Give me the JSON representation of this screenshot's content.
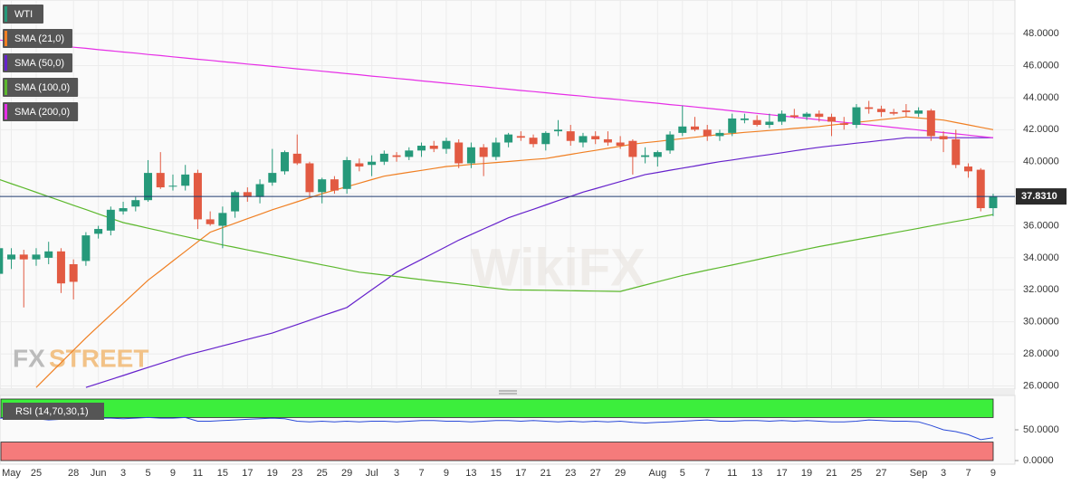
{
  "chart_data": [
    {
      "type": "candlestick",
      "name": "WTI",
      "up_color": "#26997a",
      "down_color": "#e25a42",
      "categories": [
        null,
        "May",
        null,
        "25",
        null,
        null,
        "28",
        null,
        "Jun",
        null,
        "3",
        null,
        "5",
        null,
        "9",
        null,
        "11",
        null,
        "15",
        null,
        "17",
        null,
        "19",
        null,
        "23",
        null,
        "25",
        null,
        "29",
        null,
        "Jul",
        null,
        "3",
        null,
        "7",
        null,
        "9",
        null,
        "13",
        null,
        "15",
        null,
        "17",
        null,
        "21",
        null,
        "23",
        null,
        "27",
        null,
        "29",
        null,
        null,
        "Aug",
        null,
        "5",
        null,
        "7",
        null,
        "11",
        null,
        "13",
        null,
        "17",
        null,
        "19",
        null,
        "21",
        null,
        "25",
        null,
        "27",
        null,
        null,
        "Sep",
        null,
        "3",
        null,
        "7",
        null,
        "9"
      ],
      "open": [
        33.0,
        33.9,
        34.2,
        33.9,
        34.0,
        34.4,
        33.6,
        33.8,
        35.5,
        35.7,
        36.9,
        37.2,
        37.6,
        39.3,
        38.5,
        38.5,
        39.3,
        36.4,
        36.0,
        36.9,
        38.1,
        37.8,
        38.7,
        39.4,
        40.5,
        39.9,
        38.1,
        38.9,
        38.3,
        39.9,
        39.8,
        40.0,
        40.4,
        40.3,
        40.7,
        41.0,
        40.8,
        41.2,
        39.9,
        40.9,
        40.3,
        41.2,
        41.6,
        41.5,
        41.1,
        41.9,
        41.9,
        41.2,
        41.6,
        41.4,
        41.2,
        41.3,
        40.3,
        40.3,
        40.7,
        41.8,
        42.2,
        42.0,
        41.6,
        41.8,
        42.6,
        42.6,
        42.3,
        42.5,
        42.9,
        42.8,
        43.0,
        42.8,
        42.4,
        42.3,
        43.4,
        43.3,
        43.1,
        43.2,
        43.0,
        43.2,
        41.6,
        41.4,
        39.7,
        39.5,
        37.1
      ],
      "high": [
        35.3,
        34.6,
        34.5,
        34.6,
        35.0,
        34.6,
        33.9,
        35.6,
        36.0,
        37.2,
        37.5,
        37.8,
        40.1,
        40.6,
        39.2,
        39.8,
        39.5,
        36.9,
        37.2,
        38.2,
        38.4,
        38.9,
        40.8,
        40.7,
        41.7,
        40.0,
        39.0,
        39.1,
        40.3,
        40.2,
        40.4,
        40.7,
        40.6,
        40.9,
        41.2,
        41.3,
        41.5,
        41.4,
        41.2,
        41.1,
        41.5,
        41.8,
        41.9,
        41.7,
        41.9,
        42.6,
        42.3,
        41.8,
        41.9,
        41.9,
        41.6,
        41.4,
        40.9,
        40.7,
        41.9,
        43.5,
        42.8,
        42.3,
        42.0,
        43.0,
        43.0,
        42.9,
        43.0,
        43.2,
        43.3,
        43.1,
        43.2,
        43.0,
        42.8,
        43.6,
        43.8,
        43.5,
        43.3,
        43.6,
        43.4,
        43.3,
        41.9,
        42.0,
        39.9,
        39.6,
        38.0
      ],
      "low": [
        32.6,
        33.3,
        30.9,
        33.5,
        33.6,
        31.8,
        31.4,
        33.5,
        35.2,
        35.4,
        36.7,
        36.9,
        37.5,
        38.3,
        38.2,
        38.2,
        35.8,
        36.0,
        34.6,
        36.5,
        37.5,
        37.4,
        38.5,
        39.2,
        39.8,
        37.8,
        37.4,
        38.0,
        38.0,
        39.4,
        39.1,
        39.8,
        40.0,
        40.1,
        40.3,
        40.6,
        40.5,
        39.6,
        39.6,
        39.1,
        40.1,
        40.9,
        41.3,
        40.9,
        40.7,
        41.6,
        41.0,
        40.9,
        41.1,
        41.0,
        40.8,
        39.2,
        39.9,
        39.7,
        40.5,
        41.6,
        41.9,
        41.3,
        41.3,
        41.6,
        42.4,
        42.2,
        42.1,
        42.3,
        42.7,
        42.6,
        42.5,
        41.6,
        42.0,
        42.1,
        43.0,
        42.8,
        42.9,
        42.8,
        42.8,
        41.3,
        40.6,
        39.6,
        39.0,
        36.9,
        36.6
      ],
      "close": [
        34.6,
        34.2,
        33.9,
        34.2,
        34.4,
        32.4,
        32.5,
        35.4,
        35.8,
        37.0,
        37.1,
        37.6,
        39.3,
        38.4,
        38.5,
        39.2,
        36.4,
        36.1,
        36.8,
        38.1,
        37.8,
        38.6,
        39.3,
        40.6,
        39.9,
        38.1,
        38.9,
        38.2,
        40.1,
        39.7,
        40.0,
        40.5,
        40.3,
        40.7,
        41.0,
        40.8,
        41.3,
        39.9,
        40.9,
        40.3,
        41.2,
        41.7,
        41.5,
        41.1,
        41.8,
        42.0,
        41.3,
        41.6,
        41.4,
        41.2,
        41.0,
        40.3,
        40.4,
        40.6,
        41.7,
        42.2,
        42.0,
        41.6,
        41.8,
        42.7,
        42.7,
        42.3,
        42.5,
        43.0,
        42.8,
        43.0,
        42.8,
        42.5,
        42.3,
        43.4,
        43.3,
        43.1,
        43.0,
        43.1,
        43.2,
        41.6,
        41.4,
        39.8,
        39.4,
        37.1,
        37.831
      ],
      "last_close_label": "37.8310",
      "series": [
        {
          "name": "SMA (21,0)",
          "color": "#f07f22",
          "values": [
            null,
            null,
            null,
            25.9,
            26.68,
            27.45,
            28.23,
            29.0,
            29.72,
            30.44,
            31.16,
            31.88,
            32.6,
            33.2,
            33.8,
            34.4,
            35.0,
            35.6,
            35.88,
            36.16,
            36.44,
            36.72,
            37.0,
            37.25,
            37.5,
            37.75,
            38.0,
            38.22,
            38.44,
            38.66,
            38.88,
            39.1,
            39.22,
            39.34,
            39.46,
            39.58,
            39.7,
            39.76,
            39.83,
            39.89,
            39.95,
            40.01,
            40.08,
            40.14,
            40.2,
            40.33,
            40.46,
            40.59,
            40.71,
            40.84,
            40.97,
            41.1,
            41.19,
            41.27,
            41.36,
            41.44,
            41.53,
            41.61,
            41.7,
            41.76,
            41.83,
            41.89,
            41.95,
            42.01,
            42.08,
            42.14,
            42.2,
            42.29,
            42.37,
            42.46,
            42.54,
            42.63,
            42.71,
            42.8,
            42.73,
            42.67,
            42.6,
            42.45,
            42.3,
            42.15,
            42.0
          ]
        },
        {
          "name": "SMA (50,0)",
          "color": "#6622cc",
          "values": [
            null,
            null,
            null,
            null,
            null,
            null,
            null,
            25.9,
            26.15,
            26.4,
            26.65,
            26.9,
            27.15,
            27.4,
            27.65,
            27.9,
            28.1,
            28.3,
            28.5,
            28.7,
            28.9,
            29.1,
            29.3,
            29.57,
            29.83,
            30.1,
            30.37,
            30.63,
            30.9,
            31.45,
            32.0,
            32.55,
            33.1,
            33.5,
            33.9,
            34.3,
            34.7,
            35.1,
            35.45,
            35.8,
            36.15,
            36.5,
            36.77,
            37.03,
            37.3,
            37.57,
            37.83,
            38.1,
            38.32,
            38.54,
            38.76,
            38.98,
            39.2,
            39.33,
            39.47,
            39.6,
            39.73,
            39.87,
            40.0,
            40.11,
            40.23,
            40.34,
            40.45,
            40.56,
            40.68,
            40.79,
            40.9,
            40.99,
            41.07,
            41.16,
            41.24,
            41.33,
            41.41,
            41.5,
            41.5,
            41.5,
            41.5,
            41.5,
            41.5,
            41.5,
            41.5
          ]
        },
        {
          "name": "SMA (100,0)",
          "color": "#5cb82d",
          "values": [
            38.9,
            38.63,
            38.36,
            38.09,
            37.82,
            37.55,
            37.28,
            37.01,
            36.74,
            36.47,
            36.2,
            36.03,
            35.85,
            35.68,
            35.5,
            35.33,
            35.15,
            34.98,
            34.8,
            34.65,
            34.49,
            34.34,
            34.18,
            34.03,
            33.87,
            33.72,
            33.56,
            33.41,
            33.25,
            33.1,
            33.01,
            32.92,
            32.83,
            32.73,
            32.64,
            32.55,
            32.46,
            32.37,
            32.28,
            32.18,
            32.09,
            32.0,
            31.99,
            31.98,
            31.97,
            31.96,
            31.94,
            31.93,
            31.92,
            31.91,
            31.9,
            32.1,
            32.3,
            32.5,
            32.7,
            32.9,
            33.06,
            33.23,
            33.39,
            33.55,
            33.72,
            33.88,
            34.05,
            34.21,
            34.37,
            34.54,
            34.7,
            34.84,
            34.99,
            35.13,
            35.27,
            35.41,
            35.56,
            35.7,
            35.84,
            35.99,
            36.13,
            36.27,
            36.41,
            36.56,
            36.7
          ]
        },
        {
          "name": "SMA (200,0)",
          "color": "#e62ee6",
          "values": [
            47.6,
            47.53,
            47.45,
            47.38,
            47.3,
            47.23,
            47.15,
            47.08,
            47.0,
            46.93,
            46.85,
            46.78,
            46.7,
            46.63,
            46.55,
            46.48,
            46.4,
            46.33,
            46.25,
            46.18,
            46.1,
            46.03,
            45.95,
            45.88,
            45.8,
            45.73,
            45.65,
            45.58,
            45.5,
            45.43,
            45.35,
            45.28,
            45.2,
            45.13,
            45.05,
            44.98,
            44.9,
            44.83,
            44.75,
            44.68,
            44.6,
            44.53,
            44.45,
            44.38,
            44.31,
            44.23,
            44.16,
            44.09,
            44.01,
            43.94,
            43.87,
            43.79,
            43.72,
            43.65,
            43.57,
            43.5,
            43.42,
            43.34,
            43.26,
            43.18,
            43.1,
            43.02,
            42.94,
            42.86,
            42.78,
            42.7,
            42.62,
            42.54,
            42.46,
            42.38,
            42.3,
            42.22,
            42.14,
            42.06,
            41.98,
            41.9,
            41.82,
            41.74,
            41.66,
            41.58,
            41.5
          ]
        }
      ],
      "ylim": [
        25.8,
        50.1
      ],
      "yticks": [
        {
          "value": 26,
          "label": "26.0000"
        },
        {
          "value": 28,
          "label": "28.0000"
        },
        {
          "value": 30,
          "label": "30.0000"
        },
        {
          "value": 32,
          "label": "32.0000"
        },
        {
          "value": 34,
          "label": "34.0000"
        },
        {
          "value": 36,
          "label": "36.0000"
        },
        {
          "value": 38,
          "label": "38.0000"
        },
        {
          "value": 40,
          "label": "40.0000"
        },
        {
          "value": 42,
          "label": "42.0000"
        },
        {
          "value": 44,
          "label": "44.0000"
        },
        {
          "value": 46,
          "label": "46.0000"
        },
        {
          "value": 48,
          "label": "48.0000"
        }
      ],
      "grid": true,
      "watermark": [
        "FX",
        "STREET"
      ],
      "watermark_logo": "WikiFX"
    },
    {
      "type": "line",
      "title": "RSI (14,70,30,1)",
      "color": "#2a4ad8",
      "values": [
        69,
        69,
        68,
        68,
        66,
        67,
        68,
        69,
        69,
        69,
        68,
        69,
        70,
        69,
        69,
        70,
        64,
        64,
        65,
        66,
        67,
        68,
        69,
        68,
        64,
        63,
        64,
        63,
        64,
        63,
        64,
        64,
        63,
        64,
        65,
        65,
        64,
        64,
        63,
        64,
        65,
        65,
        64,
        65,
        64,
        63,
        64,
        63,
        64,
        63,
        64,
        62,
        61,
        62,
        63,
        64,
        65,
        66,
        64,
        64,
        65,
        65,
        64,
        65,
        64,
        65,
        64,
        63,
        63,
        64,
        66,
        65,
        64,
        64,
        63,
        57,
        50,
        47,
        42,
        34,
        37
      ],
      "bands": [
        {
          "from": 70,
          "to": 100,
          "color": "#3cee3c"
        },
        {
          "from": 0,
          "to": 30,
          "color": "#f57b7b"
        }
      ],
      "ylim": [
        0,
        100
      ],
      "yticks": [
        {
          "value": 0,
          "label": "0.0000"
        },
        {
          "value": 50,
          "label": "50.0000"
        }
      ]
    }
  ]
}
